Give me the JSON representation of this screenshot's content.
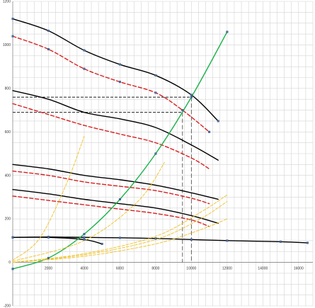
{
  "chart_data": {
    "type": "line",
    "title": "",
    "xlabel": "",
    "ylabel": "",
    "xlim": [
      0,
      16800
    ],
    "ylim": [
      -200,
      1200
    ],
    "grid": true,
    "legend": "none",
    "x_ticks": [
      "2000",
      "4000",
      "6000",
      "8000",
      "10000",
      "12000",
      "14000",
      "16000"
    ],
    "y_ticks": [
      "-200",
      "0",
      "200",
      "400",
      "600",
      "800",
      "1000",
      "1200"
    ],
    "x_tick_values": [
      2000,
      4000,
      6000,
      8000,
      10000,
      12000,
      14000,
      16000
    ],
    "y_tick_values": [
      -200,
      0,
      200,
      400,
      600,
      800,
      1000,
      1200
    ],
    "series": [
      {
        "style": "black-solid",
        "color": "#000000",
        "markers": true,
        "x": [
          0,
          2000,
          4000,
          6000,
          8000,
          10000,
          11500
        ],
        "y": [
          1120,
          1065,
          975,
          910,
          860,
          770,
          650
        ]
      },
      {
        "style": "red-dashed",
        "color": "#d62020",
        "markers": true,
        "x": [
          0,
          2000,
          4000,
          6000,
          8000,
          9500,
          11000
        ],
        "y": [
          1040,
          980,
          890,
          830,
          780,
          700,
          600
        ]
      },
      {
        "style": "black-solid",
        "color": "#000000",
        "markers": false,
        "x": [
          0,
          2000,
          4000,
          6000,
          8000,
          10000,
          11500
        ],
        "y": [
          790,
          750,
          690,
          660,
          620,
          540,
          470
        ]
      },
      {
        "style": "red-dashed",
        "color": "#d62020",
        "markers": false,
        "x": [
          0,
          2000,
          4000,
          6000,
          8000,
          10000,
          11000
        ],
        "y": [
          730,
          680,
          630,
          590,
          550,
          480,
          430
        ]
      },
      {
        "style": "black-solid",
        "color": "#000000",
        "markers": false,
        "x": [
          0,
          2000,
          4000,
          6000,
          8000,
          10000,
          11500
        ],
        "y": [
          450,
          430,
          400,
          380,
          355,
          320,
          290
        ]
      },
      {
        "style": "red-dashed",
        "color": "#d62020",
        "markers": false,
        "x": [
          0,
          2000,
          4000,
          6000,
          8000,
          10000,
          11000
        ],
        "y": [
          420,
          400,
          370,
          350,
          330,
          295,
          270
        ]
      },
      {
        "style": "black-solid",
        "color": "#000000",
        "markers": false,
        "x": [
          0,
          2000,
          4000,
          6000,
          8000,
          10000,
          11500
        ],
        "y": [
          335,
          315,
          290,
          270,
          250,
          215,
          180
        ]
      },
      {
        "style": "red-dashed",
        "color": "#d62020",
        "markers": false,
        "x": [
          0,
          2000,
          4000,
          6000,
          8000,
          10000,
          11000
        ],
        "y": [
          305,
          285,
          265,
          245,
          225,
          195,
          165
        ]
      },
      {
        "style": "black-solid",
        "color": "#000000",
        "markers": true,
        "x": [
          0,
          2000,
          4000,
          6000,
          8000,
          10000,
          12000,
          15000,
          16500
        ],
        "y": [
          115,
          117,
          115,
          113,
          110,
          105,
          100,
          95,
          90
        ]
      },
      {
        "style": "black-solid",
        "color": "#000000",
        "markers": true,
        "x": [
          0,
          2000,
          4000,
          5000
        ],
        "y": [
          115,
          115,
          105,
          85
        ]
      },
      {
        "style": "green-solid",
        "color": "#1bb24a",
        "markers": true,
        "x": [
          0,
          2000,
          4000,
          6000,
          8000,
          10000,
          12000
        ],
        "y": [
          -30,
          20,
          130,
          290,
          500,
          760,
          1060
        ]
      },
      {
        "style": "yellow-dashed",
        "color": "#f0c020",
        "markers": false,
        "x": [
          0,
          1500,
          3000,
          4000
        ],
        "y": [
          10,
          110,
          360,
          580
        ]
      },
      {
        "style": "yellow-dashed",
        "color": "#f0c020",
        "markers": false,
        "x": [
          0,
          4000,
          7000,
          8500
        ],
        "y": [
          5,
          100,
          280,
          460
        ]
      },
      {
        "style": "yellow-dashed",
        "color": "#f0c020",
        "markers": false,
        "x": [
          0,
          4000,
          8000,
          10500,
          12000
        ],
        "y": [
          0,
          40,
          120,
          230,
          310
        ]
      },
      {
        "style": "yellow-dashed",
        "color": "#f0c020",
        "markers": false,
        "x": [
          0,
          4000,
          8000,
          10500,
          12000
        ],
        "y": [
          0,
          35,
          105,
          200,
          280
        ]
      },
      {
        "style": "yellow-dashed",
        "color": "#f0c020",
        "markers": false,
        "x": [
          0,
          4000,
          8000,
          10500,
          12000
        ],
        "y": [
          0,
          28,
          85,
          150,
          200
        ]
      }
    ],
    "reference_lines": [
      {
        "style": "black-dashed",
        "color": "#000000",
        "x": [
          0,
          10000
        ],
        "y": [
          760,
          760
        ]
      },
      {
        "style": "black-dashed",
        "color": "#000000",
        "x": [
          0,
          9500
        ],
        "y": [
          690,
          690
        ]
      },
      {
        "style": "gray-dashed",
        "color": "#555555",
        "x": [
          9500,
          9500
        ],
        "y": [
          690,
          0
        ]
      },
      {
        "style": "gray-dashed",
        "color": "#555555",
        "x": [
          10000,
          10000
        ],
        "y": [
          760,
          0
        ]
      }
    ]
  }
}
